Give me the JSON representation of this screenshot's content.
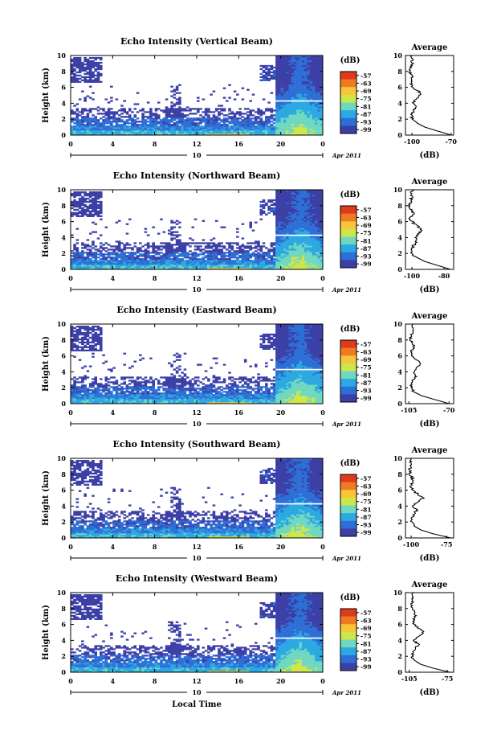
{
  "figure": {
    "xlabel": "Local Time",
    "date_label": "Apr 2011",
    "day_label": "10",
    "x_ticks": [
      "0",
      "4",
      "8",
      "12",
      "16",
      "20",
      "0"
    ],
    "y_ticks": [
      "0",
      "2",
      "4",
      "6",
      "8",
      "10"
    ],
    "ylabel": "Height (km)",
    "colorbar_unit": "(dB)",
    "colorbar_ticks": [
      "-57",
      "-63",
      "-69",
      "-75",
      "-81",
      "-87",
      "-93",
      "-99"
    ],
    "colorbar_colors": [
      "#e03a1c",
      "#f07a22",
      "#f9c43a",
      "#cfe64a",
      "#6fd8c0",
      "#2ca8e2",
      "#2d6fd6",
      "#3c40a6"
    ],
    "avg_title": "Average",
    "avg_xlabel": "(dB)"
  },
  "chart_data": [
    {
      "type": "heatmap",
      "title": "Echo Intensity (Vertical Beam)",
      "xlabel": "",
      "ylabel": "Height (km)",
      "xlim": [
        0,
        24
      ],
      "ylim": [
        0,
        10
      ],
      "colorbar": {
        "label": "(dB)",
        "range": [
          -99,
          -57
        ]
      },
      "average_profile": {
        "title": "Average",
        "xlabel": "(dB)",
        "xticks": [
          "-100",
          "-70"
        ],
        "xlim": [
          -105,
          -68
        ],
        "height": [
          0,
          0.5,
          1,
          1.5,
          2,
          2.5,
          3,
          3.5,
          4,
          4.5,
          5,
          5.5,
          6,
          6.5,
          7,
          7.5,
          8,
          8.5,
          9,
          9.5,
          10
        ],
        "value": [
          -70,
          -80,
          -90,
          -96,
          -100,
          -100,
          -99,
          -97,
          -99,
          -97,
          -94,
          -95,
          -100,
          -101,
          -100,
          -100,
          -102,
          -101,
          -100,
          -100,
          -100
        ]
      }
    },
    {
      "type": "heatmap",
      "title": "Echo Intensity (Northward Beam)",
      "xlabel": "",
      "ylabel": "Height (km)",
      "xlim": [
        0,
        24
      ],
      "ylim": [
        0,
        10
      ],
      "colorbar": {
        "label": "(dB)",
        "range": [
          -99,
          -57
        ]
      },
      "average_profile": {
        "title": "Average",
        "xlabel": "(dB)",
        "xticks": [
          "-100",
          "-80"
        ],
        "xlim": [
          -104,
          -74
        ],
        "height": [
          0,
          0.5,
          1,
          1.5,
          2,
          2.5,
          3,
          3.5,
          4,
          4.5,
          5,
          5.5,
          6,
          6.5,
          7,
          7.5,
          8,
          8.5,
          9,
          9.5,
          10
        ],
        "value": [
          -76,
          -84,
          -92,
          -97,
          -100,
          -100,
          -99,
          -97,
          -98,
          -96,
          -94,
          -97,
          -100,
          -101,
          -99,
          -100,
          -102,
          -101,
          -100,
          -100,
          -100
        ]
      }
    },
    {
      "type": "heatmap",
      "title": "Echo Intensity (Eastward Beam)",
      "xlabel": "",
      "ylabel": "Height (km)",
      "xlim": [
        0,
        24
      ],
      "ylim": [
        0,
        10
      ],
      "colorbar": {
        "label": "(dB)",
        "range": [
          -99,
          -57
        ]
      },
      "average_profile": {
        "title": "Average",
        "xlabel": "(dB)",
        "xticks": [
          "-105",
          "-70"
        ],
        "xlim": [
          -108,
          -66
        ],
        "height": [
          0,
          0.5,
          1,
          1.5,
          2,
          2.5,
          3,
          3.5,
          4,
          4.5,
          5,
          5.5,
          6,
          6.5,
          7,
          7.5,
          8,
          8.5,
          9,
          9.5,
          10
        ],
        "value": [
          -70,
          -82,
          -94,
          -101,
          -103,
          -103,
          -101,
          -99,
          -101,
          -98,
          -95,
          -98,
          -102,
          -103,
          -101,
          -101,
          -104,
          -103,
          -102,
          -102,
          -102
        ]
      }
    },
    {
      "type": "heatmap",
      "title": "Echo Intensity (Southward Beam)",
      "xlabel": "",
      "ylabel": "Height (km)",
      "xlim": [
        0,
        24
      ],
      "ylim": [
        0,
        10
      ],
      "colorbar": {
        "label": "(dB)",
        "range": [
          -99,
          -57
        ]
      },
      "average_profile": {
        "title": "Average",
        "xlabel": "(dB)",
        "xticks": [
          "-100",
          "-75"
        ],
        "xlim": [
          -104,
          -70
        ],
        "height": [
          0,
          0.5,
          1,
          1.5,
          2,
          2.5,
          3,
          3.5,
          4,
          4.5,
          5,
          5.5,
          6,
          6.5,
          7,
          7.5,
          8,
          8.5,
          9,
          9.5,
          10
        ],
        "value": [
          -72,
          -84,
          -93,
          -98,
          -100,
          -99,
          -98,
          -96,
          -99,
          -96,
          -92,
          -95,
          -99,
          -100,
          -99,
          -99,
          -101,
          -101,
          -100,
          -100,
          -100
        ]
      }
    },
    {
      "type": "heatmap",
      "title": "Echo Intensity (Westward Beam)",
      "xlabel": "Local Time",
      "ylabel": "Height (km)",
      "xlim": [
        0,
        24
      ],
      "ylim": [
        0,
        10
      ],
      "colorbar": {
        "label": "(dB)",
        "range": [
          -99,
          -57
        ]
      },
      "average_profile": {
        "title": "Average",
        "xlabel": "(dB)",
        "xticks": [
          "-105",
          "-75"
        ],
        "xlim": [
          -108,
          -70
        ],
        "height": [
          0,
          0.5,
          1,
          1.5,
          2,
          2.5,
          3,
          3.5,
          4,
          4.5,
          5,
          5.5,
          6,
          6.5,
          7,
          7.5,
          8,
          8.5,
          9,
          9.5,
          10
        ],
        "value": [
          -73,
          -86,
          -96,
          -101,
          -103,
          -102,
          -100,
          -98,
          -101,
          -98,
          -94,
          -97,
          -101,
          -102,
          -100,
          -101,
          -103,
          -103,
          -102,
          -102,
          -102
        ]
      }
    }
  ]
}
